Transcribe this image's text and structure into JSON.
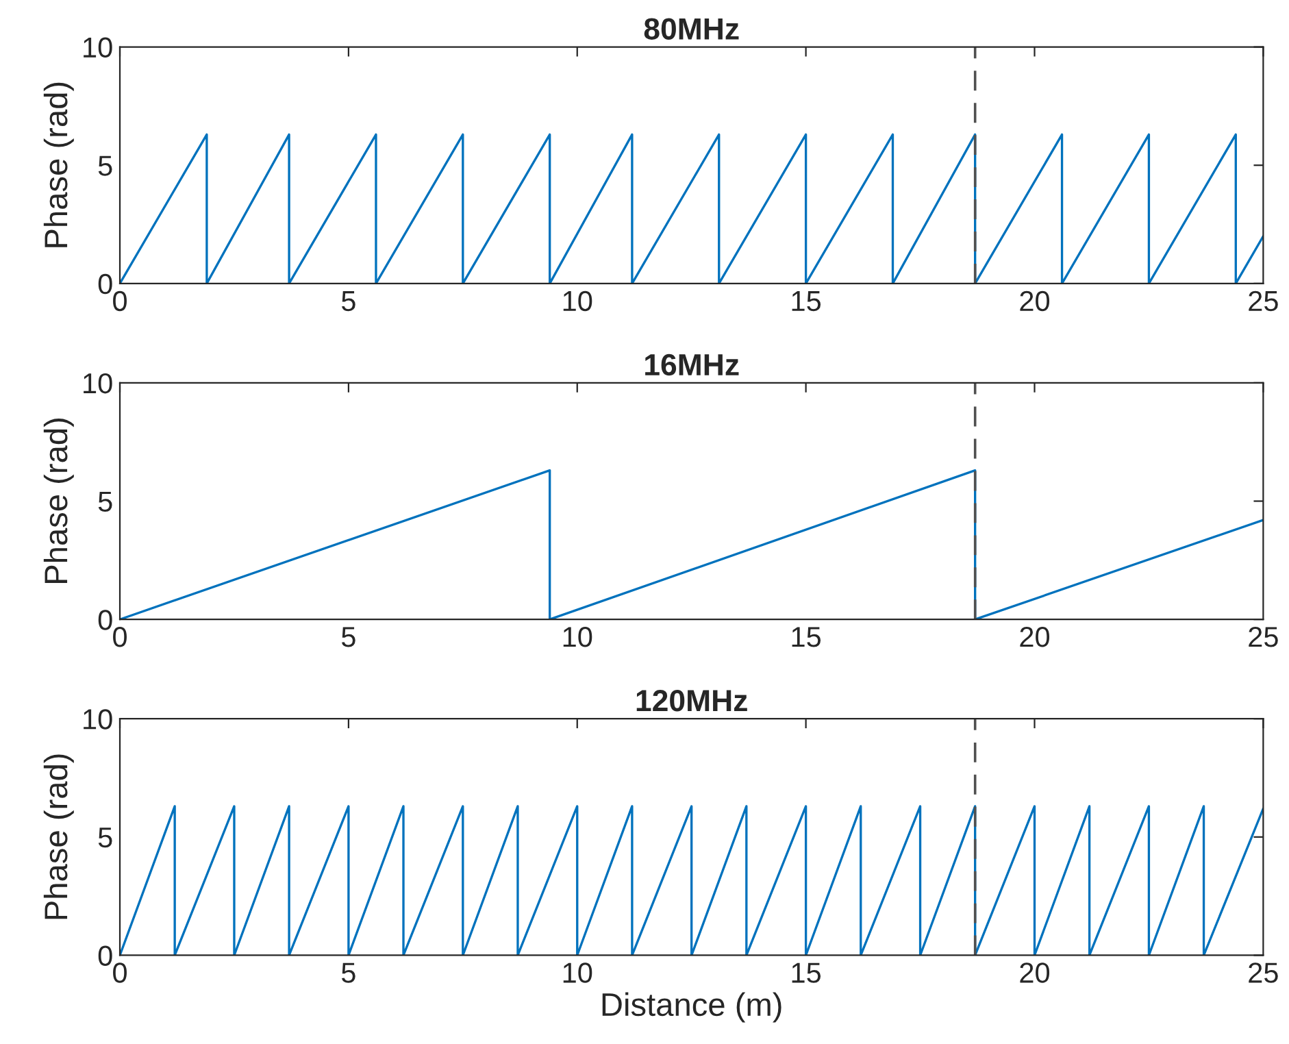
{
  "chart_data": [
    {
      "type": "line",
      "title": "80MHz",
      "ylabel": "Phase (rad)",
      "xlim": [
        0,
        25
      ],
      "xticks": [
        0,
        5,
        10,
        15,
        20,
        25
      ],
      "ylim": [
        0,
        10
      ],
      "yticks": [
        0,
        5,
        10
      ],
      "grid": false,
      "legend": false,
      "line_style": "solid",
      "series": [
        {
          "color": "#0072bd",
          "x": [
            0,
            1.9,
            1.9,
            3.7,
            3.7,
            5.6,
            5.6,
            7.5,
            7.5,
            9.4,
            9.4,
            11.2,
            11.2,
            13.1,
            13.1,
            15.0,
            15.0,
            16.9,
            16.9,
            18.7,
            18.7,
            20.6,
            20.6,
            22.5,
            22.5,
            24.4,
            24.4,
            25
          ],
          "values": [
            0,
            6.3,
            0,
            6.3,
            0,
            6.3,
            0,
            6.3,
            0,
            6.3,
            0,
            6.3,
            0,
            6.3,
            0,
            6.3,
            0,
            6.3,
            0,
            6.3,
            0,
            6.3,
            0,
            6.3,
            0,
            6.3,
            0,
            2.0
          ]
        }
      ],
      "ref_lines": [
        {
          "axis": "x",
          "value": 18.7,
          "color": "#505050",
          "line_style": "dashed"
        }
      ]
    },
    {
      "type": "line",
      "title": "16MHz",
      "ylabel": "Phase (rad)",
      "xlim": [
        0,
        25
      ],
      "xticks": [
        0,
        5,
        10,
        15,
        20,
        25
      ],
      "ylim": [
        0,
        10
      ],
      "yticks": [
        0,
        5,
        10
      ],
      "grid": false,
      "legend": false,
      "line_style": "solid",
      "series": [
        {
          "color": "#0072bd",
          "x": [
            0,
            9.4,
            9.4,
            18.7,
            18.7,
            25
          ],
          "values": [
            0,
            6.3,
            0,
            6.3,
            0,
            4.2
          ]
        }
      ],
      "ref_lines": [
        {
          "axis": "x",
          "value": 18.7,
          "color": "#505050",
          "line_style": "dashed"
        }
      ]
    },
    {
      "type": "line",
      "title": "120MHz",
      "xlabel": "Distance (m)",
      "ylabel": "Phase (rad)",
      "xlim": [
        0,
        25
      ],
      "xticks": [
        0,
        5,
        10,
        15,
        20,
        25
      ],
      "ylim": [
        0,
        10
      ],
      "yticks": [
        0,
        5,
        10
      ],
      "grid": false,
      "legend": false,
      "line_style": "solid",
      "series": [
        {
          "color": "#0072bd",
          "x": [
            0,
            1.2,
            1.2,
            2.5,
            2.5,
            3.7,
            3.7,
            5.0,
            5.0,
            6.2,
            6.2,
            7.5,
            7.5,
            8.7,
            8.7,
            10.0,
            10.0,
            11.2,
            11.2,
            12.5,
            12.5,
            13.7,
            13.7,
            15.0,
            15.0,
            16.2,
            16.2,
            17.5,
            17.5,
            18.7,
            18.7,
            20.0,
            20.0,
            21.2,
            21.2,
            22.5,
            22.5,
            23.7,
            23.7,
            25
          ],
          "values": [
            0,
            6.3,
            0,
            6.3,
            0,
            6.3,
            0,
            6.3,
            0,
            6.3,
            0,
            6.3,
            0,
            6.3,
            0,
            6.3,
            0,
            6.3,
            0,
            6.3,
            0,
            6.3,
            0,
            6.3,
            0,
            6.3,
            0,
            6.3,
            0,
            6.3,
            0,
            6.3,
            0,
            6.3,
            0,
            6.3,
            0,
            6.3,
            0,
            6.2
          ]
        }
      ],
      "ref_lines": [
        {
          "axis": "x",
          "value": 18.7,
          "color": "#505050",
          "line_style": "dashed"
        }
      ]
    }
  ]
}
